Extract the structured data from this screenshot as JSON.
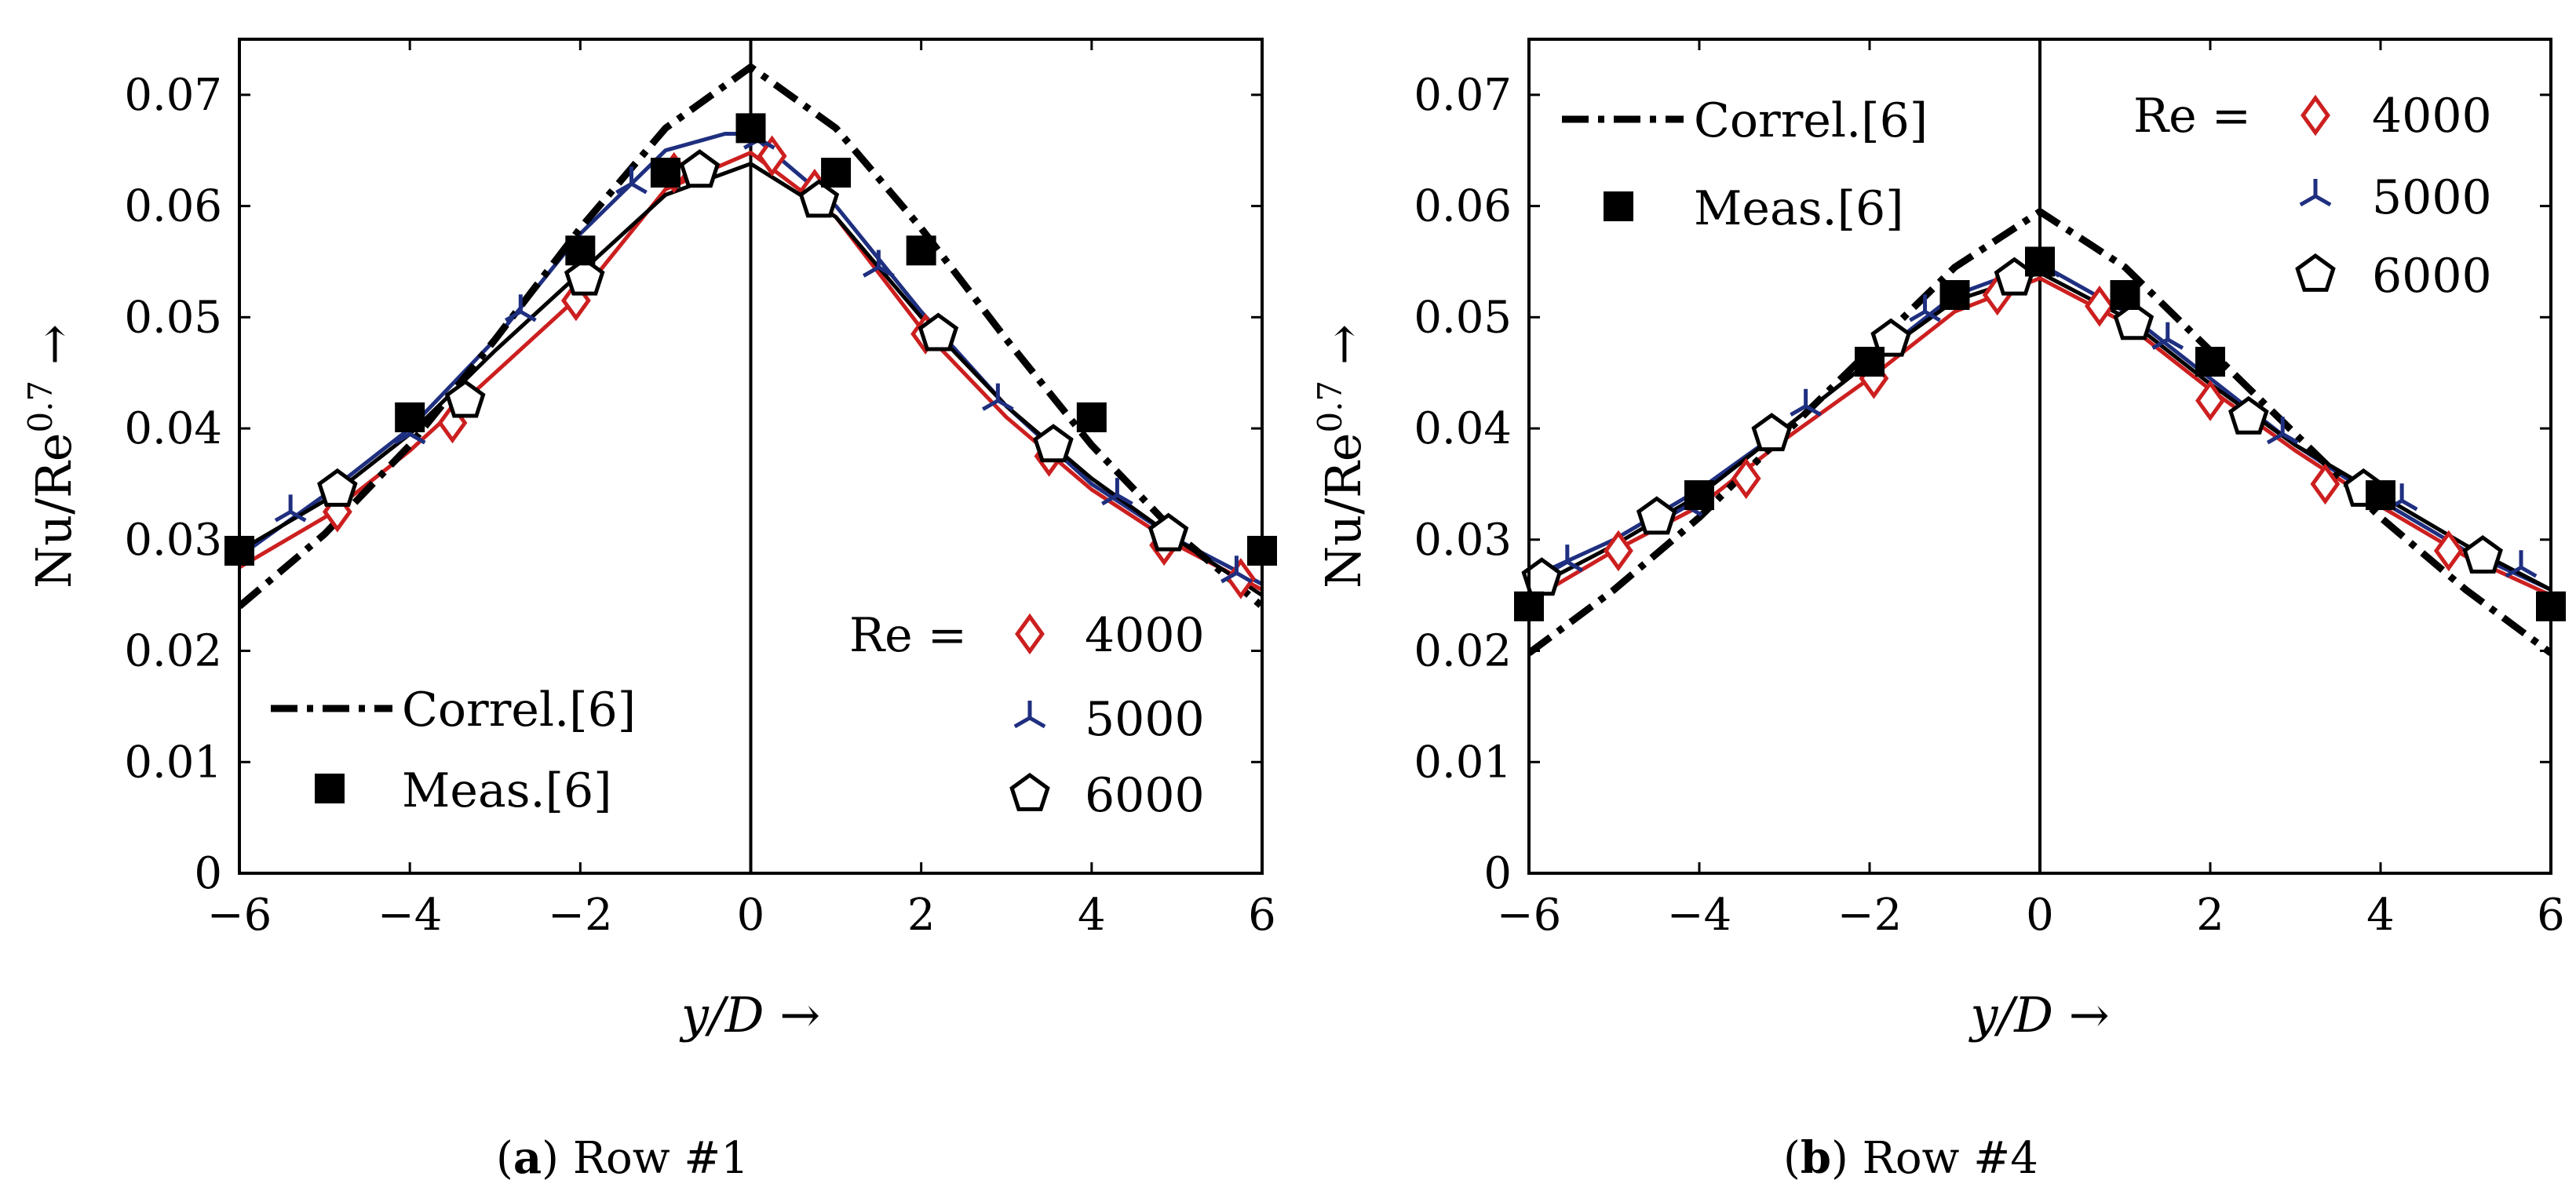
{
  "figure": {
    "panels": [
      {
        "caption_letter": "a",
        "caption_text": "Row #1",
        "legend_re_label": "Re =",
        "legend_correl": "Correl.[6]",
        "legend_meas": "Meas.[6]"
      },
      {
        "caption_letter": "b",
        "caption_text": "Row #4",
        "legend_re_label": "Re =",
        "legend_correl": "Correl.[6]",
        "legend_meas": "Meas.[6]"
      }
    ]
  },
  "colors": {
    "re4000": "#cc1f1f",
    "re5000": "#1f2f80",
    "re6000": "#000000",
    "correl": "#000000",
    "meas": "#000000",
    "axis": "#000000"
  },
  "chart_data": [
    {
      "type": "line",
      "title": "(a) Row #1",
      "xlabel": "y/D →",
      "ylabel": "Nu/Re^0.7 →",
      "xlim": [
        -6,
        6
      ],
      "ylim": [
        0,
        0.075
      ],
      "xticks": [
        -6,
        -4,
        -2,
        0,
        2,
        4,
        6
      ],
      "yticks": [
        0,
        0.01,
        0.02,
        0.03,
        0.04,
        0.05,
        0.06,
        0.07
      ],
      "xtick_labels": [
        "−6",
        "−4",
        "−2",
        "0",
        "2",
        "4",
        "6"
      ],
      "ytick_labels": [
        "0",
        "0.01",
        "0.02",
        "0.03",
        "0.04",
        "0.05",
        "0.06",
        "0.07"
      ],
      "vertical_line_at": 0,
      "legend_position": "bottom",
      "series": [
        {
          "name": "4000",
          "marker": "diamond",
          "color": "#cc1f1f",
          "line": [
            [
              -6,
              0.0275
            ],
            [
              -5,
              0.032
            ],
            [
              -4,
              0.038
            ],
            [
              -3,
              0.045
            ],
            [
              -2,
              0.052
            ],
            [
              -1,
              0.0615
            ],
            [
              0,
              0.0648
            ],
            [
              1,
              0.059
            ],
            [
              2,
              0.049
            ],
            [
              3,
              0.041
            ],
            [
              4,
              0.0345
            ],
            [
              5,
              0.0295
            ],
            [
              6,
              0.0255
            ]
          ],
          "markers": [
            [
              -4.85,
              0.0325
            ],
            [
              -3.5,
              0.0405
            ],
            [
              -2.05,
              0.0515
            ],
            [
              -0.9,
              0.063
            ],
            [
              0.25,
              0.0645
            ],
            [
              0.75,
              0.0615
            ],
            [
              2.05,
              0.0485
            ],
            [
              3.5,
              0.0375
            ],
            [
              4.85,
              0.0295
            ],
            [
              5.75,
              0.0265
            ]
          ]
        },
        {
          "name": "5000",
          "marker": "tri",
          "color": "#1f2f80",
          "line": [
            [
              -6,
              0.0285
            ],
            [
              -5,
              0.034
            ],
            [
              -4,
              0.04
            ],
            [
              -3,
              0.048
            ],
            [
              -2,
              0.0575
            ],
            [
              -1,
              0.065
            ],
            [
              -0.3,
              0.0665
            ],
            [
              0,
              0.0665
            ],
            [
              1,
              0.06
            ],
            [
              2,
              0.0505
            ],
            [
              3,
              0.042
            ],
            [
              4,
              0.035
            ],
            [
              5,
              0.03
            ],
            [
              6,
              0.026
            ]
          ],
          "markers": [
            [
              -5.4,
              0.0325
            ],
            [
              -4.0,
              0.0395
            ],
            [
              -2.7,
              0.0505
            ],
            [
              -1.4,
              0.062
            ],
            [
              0.1,
              0.066
            ],
            [
              1.5,
              0.0545
            ],
            [
              2.9,
              0.0425
            ],
            [
              4.3,
              0.034
            ],
            [
              5.7,
              0.027
            ]
          ]
        },
        {
          "name": "6000",
          "marker": "pentagon",
          "color": "#000000",
          "line": [
            [
              -6,
              0.029
            ],
            [
              -5,
              0.0335
            ],
            [
              -4,
              0.0395
            ],
            [
              -3,
              0.047
            ],
            [
              -2,
              0.054
            ],
            [
              -1,
              0.061
            ],
            [
              0,
              0.0638
            ],
            [
              1,
              0.059
            ],
            [
              2,
              0.05
            ],
            [
              3,
              0.042
            ],
            [
              4,
              0.0355
            ],
            [
              5,
              0.03
            ],
            [
              6,
              0.025
            ]
          ],
          "markers": [
            [
              -4.85,
              0.0345
            ],
            [
              -3.35,
              0.0425
            ],
            [
              -1.95,
              0.0535
            ],
            [
              -0.6,
              0.0632
            ],
            [
              0.8,
              0.0605
            ],
            [
              2.2,
              0.0485
            ],
            [
              3.55,
              0.0385
            ],
            [
              4.9,
              0.0305
            ]
          ]
        },
        {
          "name": "Correl.[6]",
          "marker": "none",
          "style": "dashdot",
          "color": "#000000",
          "line": [
            [
              -6,
              0.024
            ],
            [
              -5,
              0.0305
            ],
            [
              -4,
              0.0385
            ],
            [
              -3,
              0.048
            ],
            [
              -2,
              0.058
            ],
            [
              -1,
              0.067
            ],
            [
              0,
              0.0725
            ],
            [
              1,
              0.067
            ],
            [
              2,
              0.058
            ],
            [
              3,
              0.048
            ],
            [
              4,
              0.0385
            ],
            [
              5,
              0.0305
            ],
            [
              6,
              0.024
            ]
          ]
        },
        {
          "name": "Meas.[6]",
          "marker": "square",
          "color": "#000000",
          "markers": [
            [
              -6,
              0.029
            ],
            [
              -4,
              0.041
            ],
            [
              -2,
              0.056
            ],
            [
              -1,
              0.063
            ],
            [
              0,
              0.067
            ],
            [
              1,
              0.063
            ],
            [
              2,
              0.056
            ],
            [
              4,
              0.041
            ],
            [
              6,
              0.029
            ]
          ]
        }
      ]
    },
    {
      "type": "line",
      "title": "(b) Row #4",
      "xlabel": "y/D →",
      "ylabel": "Nu/Re^0.7 →",
      "xlim": [
        -6,
        6
      ],
      "ylim": [
        0,
        0.075
      ],
      "xticks": [
        -6,
        -4,
        -2,
        0,
        2,
        4,
        6
      ],
      "yticks": [
        0,
        0.01,
        0.02,
        0.03,
        0.04,
        0.05,
        0.06,
        0.07
      ],
      "xtick_labels": [
        "−6",
        "−4",
        "−2",
        "0",
        "2",
        "4",
        "6"
      ],
      "ytick_labels": [
        "0",
        "0.01",
        "0.02",
        "0.03",
        "0.04",
        "0.05",
        "0.06",
        "0.07"
      ],
      "vertical_line_at": 0,
      "legend_position": "top",
      "series": [
        {
          "name": "4000",
          "marker": "diamond",
          "color": "#cc1f1f",
          "line": [
            [
              -6,
              0.0245
            ],
            [
              -5,
              0.029
            ],
            [
              -4,
              0.033
            ],
            [
              -3,
              0.039
            ],
            [
              -2,
              0.0445
            ],
            [
              -1,
              0.0505
            ],
            [
              0,
              0.0535
            ],
            [
              1,
              0.0495
            ],
            [
              2,
              0.0435
            ],
            [
              3,
              0.038
            ],
            [
              4,
              0.033
            ],
            [
              5,
              0.0285
            ],
            [
              6,
              0.025
            ]
          ],
          "markers": [
            [
              -4.95,
              0.029
            ],
            [
              -3.45,
              0.0355
            ],
            [
              -1.95,
              0.0445
            ],
            [
              -0.5,
              0.052
            ],
            [
              0.7,
              0.051
            ],
            [
              2.0,
              0.0425
            ],
            [
              3.35,
              0.035
            ],
            [
              4.8,
              0.029
            ]
          ]
        },
        {
          "name": "5000",
          "marker": "tri",
          "color": "#1f2f80",
          "line": [
            [
              -6,
              0.0265
            ],
            [
              -5,
              0.03
            ],
            [
              -4,
              0.0345
            ],
            [
              -3,
              0.04
            ],
            [
              -2,
              0.046
            ],
            [
              -1,
              0.052
            ],
            [
              0,
              0.0548
            ],
            [
              1,
              0.0505
            ],
            [
              2,
              0.0445
            ],
            [
              3,
              0.0385
            ],
            [
              4,
              0.0335
            ],
            [
              5,
              0.029
            ],
            [
              6,
              0.0255
            ]
          ],
          "markers": [
            [
              -5.55,
              0.028
            ],
            [
              -4.15,
              0.033
            ],
            [
              -2.75,
              0.042
            ],
            [
              -1.35,
              0.0505
            ],
            [
              0.05,
              0.0545
            ],
            [
              1.5,
              0.048
            ],
            [
              2.85,
              0.0395
            ],
            [
              4.25,
              0.0335
            ],
            [
              5.65,
              0.0275
            ]
          ]
        },
        {
          "name": "6000",
          "marker": "pentagon",
          "color": "#000000",
          "line": [
            [
              -6,
              0.0255
            ],
            [
              -5,
              0.0295
            ],
            [
              -4,
              0.034
            ],
            [
              -3,
              0.04
            ],
            [
              -2,
              0.046
            ],
            [
              -1,
              0.0515
            ],
            [
              0,
              0.054
            ],
            [
              1,
              0.05
            ],
            [
              2,
              0.044
            ],
            [
              3,
              0.0385
            ],
            [
              4,
              0.034
            ],
            [
              5,
              0.0295
            ],
            [
              6,
              0.0255
            ]
          ],
          "markers": [
            [
              -5.85,
              0.0265
            ],
            [
              -4.5,
              0.032
            ],
            [
              -3.15,
              0.0395
            ],
            [
              -1.75,
              0.048
            ],
            [
              -0.3,
              0.0535
            ],
            [
              1.1,
              0.0495
            ],
            [
              2.45,
              0.041
            ],
            [
              3.8,
              0.0345
            ],
            [
              5.2,
              0.0285
            ]
          ]
        },
        {
          "name": "Correl.[6]",
          "marker": "none",
          "style": "dashdot",
          "color": "#000000",
          "line": [
            [
              -6,
              0.0198
            ],
            [
              -5,
              0.0255
            ],
            [
              -4,
              0.032
            ],
            [
              -3,
              0.0395
            ],
            [
              -2,
              0.047
            ],
            [
              -1,
              0.0545
            ],
            [
              0,
              0.0595
            ],
            [
              1,
              0.0545
            ],
            [
              2,
              0.047
            ],
            [
              3,
              0.0395
            ],
            [
              4,
              0.032
            ],
            [
              5,
              0.0255
            ],
            [
              6,
              0.0198
            ]
          ]
        },
        {
          "name": "Meas.[6]",
          "marker": "square",
          "color": "#000000",
          "markers": [
            [
              -6,
              0.024
            ],
            [
              -4,
              0.034
            ],
            [
              -2,
              0.046
            ],
            [
              -1,
              0.052
            ],
            [
              0,
              0.055
            ],
            [
              1,
              0.052
            ],
            [
              2,
              0.046
            ],
            [
              4,
              0.034
            ],
            [
              6,
              0.024
            ]
          ]
        }
      ]
    }
  ]
}
